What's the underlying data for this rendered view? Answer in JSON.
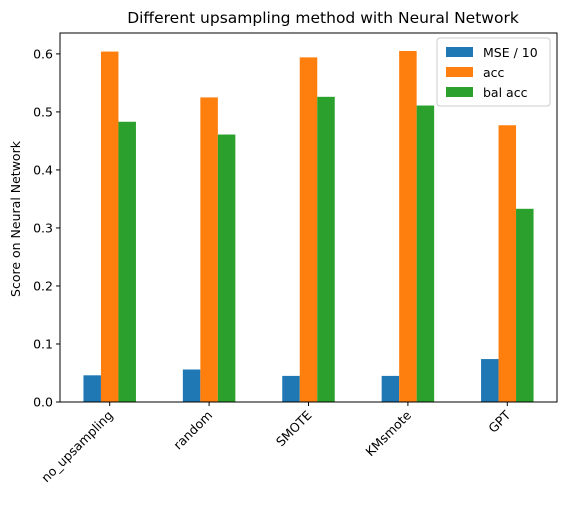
{
  "chart_data": {
    "type": "bar",
    "title": "Different upsampling method with Neural Network",
    "xlabel": "",
    "ylabel": "Score on Neural Network",
    "categories": [
      "no_upsampling",
      "random",
      "SMOTE",
      "KMsmote",
      "GPT"
    ],
    "series": [
      {
        "name": "MSE / 10",
        "color": "#1f77b4",
        "values": [
          0.046,
          0.056,
          0.045,
          0.045,
          0.074
        ]
      },
      {
        "name": "acc",
        "color": "#ff7f0e",
        "values": [
          0.604,
          0.525,
          0.594,
          0.605,
          0.477
        ]
      },
      {
        "name": "bal acc",
        "color": "#2ca02c",
        "values": [
          0.483,
          0.461,
          0.526,
          0.511,
          0.333
        ]
      }
    ],
    "ylim": [
      0,
      0.636
    ],
    "yticks": [
      0.0,
      0.1,
      0.2,
      0.3,
      0.4,
      0.5,
      0.6
    ],
    "ytick_labels": [
      "0.0",
      "0.1",
      "0.2",
      "0.3",
      "0.4",
      "0.5",
      "0.6"
    ],
    "grid": false,
    "legend_position": "top-right"
  }
}
